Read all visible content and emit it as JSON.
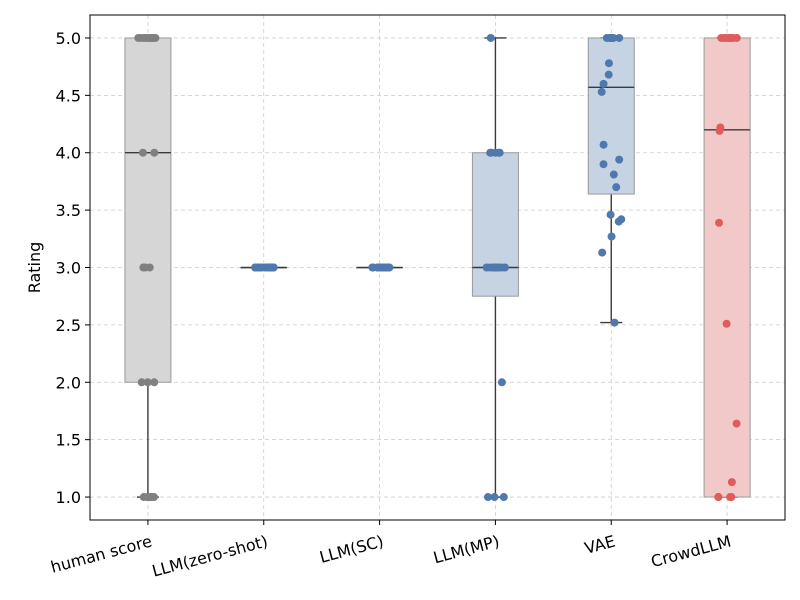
{
  "chart_data": {
    "type": "box",
    "ylabel": "Rating",
    "ylim": [
      0.8,
      5.2
    ],
    "yticks": [
      "1.0",
      "1.5",
      "2.0",
      "2.5",
      "3.0",
      "3.5",
      "4.0",
      "4.5",
      "5.0"
    ],
    "grid": true,
    "categories": [
      "human score",
      "LLM(zero-shot)",
      "LLM(SC)",
      "LLM(MP)",
      "VAE",
      "CrowdLLM"
    ],
    "series": [
      {
        "q1": 2.0,
        "median": 4.0,
        "q3": 5.0,
        "whisker_low": 1.0,
        "whisker_high": 5.0,
        "box_color": "#d6d6d6",
        "point_color": "#808080",
        "points": [
          5,
          5,
          5,
          5,
          5,
          5,
          5,
          5,
          5,
          5,
          5,
          4,
          4,
          3,
          3,
          3,
          2,
          2,
          2,
          1,
          1,
          1,
          1,
          1,
          1,
          1,
          1
        ]
      },
      {
        "q1": 3.0,
        "median": 3.0,
        "q3": 3.0,
        "whisker_low": 3.0,
        "whisker_high": 3.0,
        "box_color": "#c5d3e3",
        "point_color": "#4f78ad",
        "points": [
          3,
          3,
          3,
          3,
          3,
          3,
          3,
          3,
          3,
          3,
          3,
          3,
          3,
          3,
          3,
          3,
          3,
          3,
          3,
          3
        ]
      },
      {
        "q1": 3.0,
        "median": 3.0,
        "q3": 3.0,
        "whisker_low": 3.0,
        "whisker_high": 3.0,
        "box_color": "#c5d3e3",
        "point_color": "#4f78ad",
        "points": [
          3,
          3,
          3,
          3,
          3,
          3,
          3,
          3,
          3,
          3,
          3,
          3,
          3,
          3,
          3,
          3,
          3,
          3,
          3,
          3
        ]
      },
      {
        "q1": 2.75,
        "median": 3.0,
        "q3": 4.0,
        "whisker_low": 1.0,
        "whisker_high": 5.0,
        "box_color": "#c5d3e3",
        "point_color": "#4f78ad",
        "points": [
          5,
          4,
          4,
          4,
          4,
          4,
          3,
          3,
          3,
          3,
          3,
          3,
          3,
          3,
          3,
          2,
          1,
          1,
          1
        ]
      },
      {
        "q1": 3.64,
        "median": 4.57,
        "q3": 5.0,
        "whisker_low": 2.52,
        "whisker_high": 5.0,
        "box_color": "#c5d3e3",
        "point_color": "#4f78ad",
        "points": [
          5,
          5,
          5,
          5,
          5,
          5,
          5,
          5,
          4.78,
          4.68,
          4.6,
          4.53,
          4.07,
          3.94,
          3.9,
          3.81,
          3.7,
          3.46,
          3.42,
          3.4,
          3.27,
          3.13,
          2.52
        ]
      },
      {
        "q1": 1.0,
        "median": 4.2,
        "q3": 5.0,
        "whisker_low": 1.0,
        "whisker_high": 5.0,
        "box_color": "#f2c9c9",
        "point_color": "#e05c5c",
        "points": [
          5,
          5,
          5,
          5,
          5,
          5,
          5,
          5,
          5,
          5,
          4.22,
          4.19,
          3.39,
          2.51,
          1.64,
          1.13,
          1,
          1,
          1,
          1,
          1
        ]
      }
    ]
  }
}
